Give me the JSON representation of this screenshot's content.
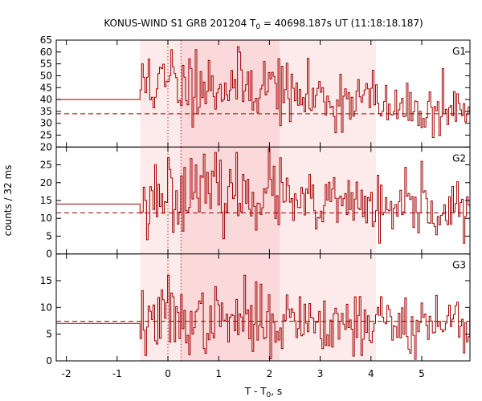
{
  "chart_data": {
    "type": "line",
    "title_parts": {
      "pre": "KONUS-WIND S1 GRB 201204 T",
      "sub": "0",
      "post": " = 40698.187s UT (11:18:18.187)"
    },
    "xlabel_parts": {
      "pre": "T - T",
      "sub": "0",
      "post": ", s"
    },
    "ylabel": "counts / 32 ms",
    "x_range": [
      -2.2,
      5.95
    ],
    "x_ticks": [
      -2,
      -1,
      0,
      1,
      2,
      3,
      4,
      5
    ],
    "bin_width": 0.032,
    "trigger_time": 0.0,
    "x_start": -2.2,
    "burst_start": -0.55,
    "shaded_regions": [
      {
        "from": -0.55,
        "to": 4.1,
        "color": "#fdeaea"
      },
      {
        "from": 0.256,
        "to": 2.2,
        "color": "#fbd9db"
      }
    ],
    "marker_lines": [
      0.0,
      0.256
    ],
    "colors": {
      "curve": "#a00000",
      "frame": "#000000"
    },
    "panels": [
      {
        "label": "G1",
        "ylim": [
          20,
          65
        ],
        "yticks": [
          20,
          25,
          30,
          35,
          40,
          45,
          50,
          55,
          60,
          65
        ],
        "pre_level": 40,
        "background": 34,
        "seed": 11,
        "segments": [
          {
            "to": 2.2,
            "mean": 46,
            "sd": 7
          },
          {
            "to": 4.1,
            "mean": 41,
            "sd": 6
          },
          {
            "to": 5.95,
            "mean": 36,
            "sd": 5
          }
        ],
        "overrides": [
          [
            0.05,
            61
          ],
          [
            0.55,
            61
          ],
          [
            -0.4,
            57
          ],
          [
            2.25,
            54
          ],
          [
            3.3,
            26
          ],
          [
            5.2,
            24
          ],
          [
            5.4,
            53
          ],
          [
            4.75,
            43
          ]
        ]
      },
      {
        "label": "G2",
        "ylim": [
          0,
          30
        ],
        "yticks": [
          0,
          5,
          10,
          15,
          20,
          25
        ],
        "pre_level": 14,
        "background": 11.5,
        "seed": 23,
        "segments": [
          {
            "to": 2.2,
            "mean": 17,
            "sd": 5
          },
          {
            "to": 4.1,
            "mean": 14,
            "sd": 4
          },
          {
            "to": 5.95,
            "mean": 12,
            "sd": 4
          }
        ],
        "overrides": [
          [
            -0.43,
            4
          ],
          [
            0.0,
            27
          ],
          [
            0.55,
            25
          ],
          [
            2.2,
            27
          ],
          [
            4.15,
            3
          ],
          [
            5.0,
            26
          ],
          [
            4.4,
            7
          ],
          [
            2.9,
            7
          ]
        ]
      },
      {
        "label": "G3",
        "ylim": [
          0,
          20
        ],
        "yticks": [
          0,
          5,
          10,
          15
        ],
        "pre_level": 7,
        "background": 7.4,
        "seed": 37,
        "segments": [
          {
            "to": 2.2,
            "mean": 7.5,
            "sd": 3
          },
          {
            "to": 4.1,
            "mean": 7.5,
            "sd": 3
          },
          {
            "to": 5.95,
            "mean": 7,
            "sd": 3
          }
        ],
        "overrides": [
          [
            0.0,
            16
          ],
          [
            1.5,
            16
          ],
          [
            -0.45,
            1
          ],
          [
            2.6,
            12
          ],
          [
            5.7,
            11
          ],
          [
            3.8,
            1
          ],
          [
            4.2,
            12
          ]
        ]
      }
    ]
  }
}
